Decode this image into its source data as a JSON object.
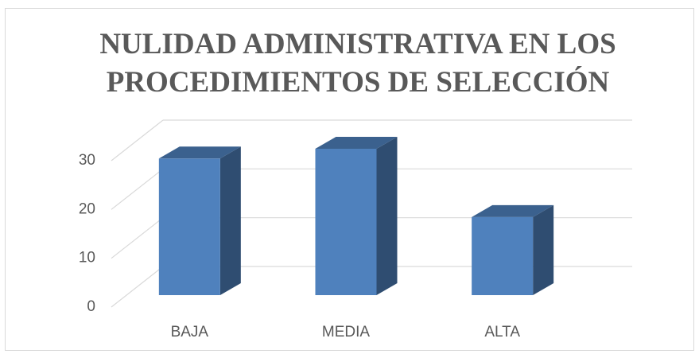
{
  "chart_data": {
    "type": "bar3d",
    "title": "NULIDAD ADMINISTRATIVA EN LOS PROCEDIMIENTOS DE SELECCIÓN",
    "categories": [
      "BAJA",
      "MEDIA",
      "ALTA"
    ],
    "values": [
      28,
      30,
      16
    ],
    "color": "#4f81bd",
    "ylim": [
      0,
      30
    ],
    "yticks": [
      0,
      10,
      20,
      30
    ],
    "grid": true
  }
}
